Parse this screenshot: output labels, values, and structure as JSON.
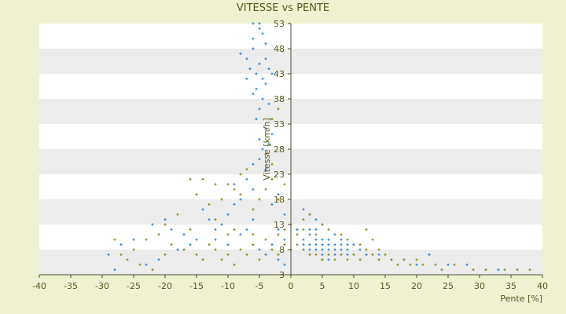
{
  "chart_data": {
    "type": "scatter",
    "title": "VITESSE vs PENTE",
    "xlabel": "Pente [%]",
    "ylabel": "Vitesse [km/h]",
    "xlim": [
      -40,
      40
    ],
    "ylim": [
      3,
      53
    ],
    "xticks": [
      -40,
      -35,
      -30,
      -25,
      -20,
      -15,
      -10,
      -5,
      0,
      5,
      10,
      15,
      20,
      25,
      30,
      35,
      40
    ],
    "yticks": [
      3,
      8,
      13,
      18,
      23,
      28,
      33,
      38,
      43,
      48,
      53
    ],
    "grid": "horizontal alternating bands",
    "legend": "none",
    "colors": {
      "background": "#eef2d0",
      "plot_band_light": "#ffffff",
      "plot_band_dark": "#ececec",
      "axis": "#4a4a30",
      "series_blue": "#2f86d6",
      "series_olive": "#8c8c1e"
    },
    "series": [
      {
        "color": "#2f86d6",
        "marker": "plus",
        "points": [
          [
            -8,
            47
          ],
          [
            -7,
            46
          ],
          [
            -6.5,
            44
          ],
          [
            -6,
            48
          ],
          [
            -5.5,
            43
          ],
          [
            -5,
            45
          ],
          [
            -4.5,
            42
          ],
          [
            -4,
            46
          ],
          [
            -3.5,
            44
          ],
          [
            -5,
            52
          ],
          [
            -6,
            50
          ],
          [
            -4,
            49
          ],
          [
            -7,
            42
          ],
          [
            -5.5,
            40
          ],
          [
            -4.5,
            38
          ],
          [
            -5,
            36
          ],
          [
            -3.5,
            37
          ],
          [
            -6,
            39
          ],
          [
            -4,
            41
          ],
          [
            -3,
            43
          ],
          [
            -5,
            53
          ],
          [
            -6,
            53
          ],
          [
            -4.5,
            51
          ],
          [
            -5.5,
            34
          ],
          [
            -4,
            32
          ],
          [
            -5,
            30
          ],
          [
            -4.5,
            28
          ],
          [
            -5,
            26
          ],
          [
            -4,
            24
          ],
          [
            -6,
            25
          ],
          [
            -3.5,
            29
          ],
          [
            -3,
            31
          ],
          [
            -7,
            22
          ],
          [
            -6,
            20
          ],
          [
            -8,
            18
          ],
          [
            -9,
            17
          ],
          [
            -10,
            15
          ],
          [
            -11,
            13
          ],
          [
            -12,
            12
          ],
          [
            -13,
            14
          ],
          [
            -14,
            16
          ],
          [
            -15,
            10
          ],
          [
            -16,
            9
          ],
          [
            -17,
            11
          ],
          [
            -18,
            8
          ],
          [
            -19,
            12
          ],
          [
            -20,
            14
          ],
          [
            -22,
            13
          ],
          [
            -25,
            10
          ],
          [
            -27,
            9
          ],
          [
            -29,
            7
          ],
          [
            -28,
            4
          ],
          [
            -21,
            6
          ],
          [
            -23,
            5
          ],
          [
            -12,
            10
          ],
          [
            -10,
            9
          ],
          [
            -8,
            11
          ],
          [
            -7,
            12
          ],
          [
            -6,
            14
          ],
          [
            -9,
            21
          ],
          [
            -3,
            17
          ],
          [
            -2,
            19
          ],
          [
            -1,
            15
          ],
          [
            -2,
            12
          ],
          [
            -1,
            10
          ],
          [
            -3,
            9
          ],
          [
            -4,
            7
          ],
          [
            -2,
            6
          ],
          [
            -1,
            5
          ],
          [
            -5,
            8
          ],
          [
            2,
            10
          ],
          [
            3,
            9
          ],
          [
            4,
            8
          ],
          [
            5,
            8
          ],
          [
            6,
            7
          ],
          [
            7,
            9
          ],
          [
            8,
            8
          ],
          [
            3,
            11
          ],
          [
            4,
            12
          ],
          [
            5,
            10
          ],
          [
            6,
            9
          ],
          [
            7,
            8
          ],
          [
            8,
            7
          ],
          [
            9,
            8
          ],
          [
            10,
            7
          ],
          [
            4,
            9
          ],
          [
            5,
            7
          ],
          [
            6,
            8
          ],
          [
            3,
            8
          ],
          [
            2,
            8
          ],
          [
            5,
            9
          ],
          [
            6,
            10
          ],
          [
            4,
            10
          ],
          [
            7,
            7
          ],
          [
            8,
            9
          ],
          [
            9,
            7
          ],
          [
            3,
            7
          ],
          [
            2,
            9
          ],
          [
            5,
            6
          ],
          [
            6,
            6
          ],
          [
            4,
            14
          ],
          [
            3,
            15
          ],
          [
            2,
            16
          ],
          [
            5,
            13
          ],
          [
            1,
            12
          ],
          [
            8,
            10
          ],
          [
            9,
            9
          ],
          [
            10,
            9
          ],
          [
            11,
            8
          ],
          [
            12,
            7
          ],
          [
            14,
            7
          ],
          [
            16,
            6
          ],
          [
            18,
            6
          ],
          [
            22,
            7
          ],
          [
            25,
            5
          ],
          [
            28,
            5
          ],
          [
            33,
            4
          ],
          [
            20,
            5
          ],
          [
            3,
            12
          ],
          [
            7,
            11
          ]
        ]
      },
      {
        "color": "#8c8c1e",
        "marker": "plus",
        "points": [
          [
            -16,
            22
          ],
          [
            -14,
            22
          ],
          [
            -12,
            21
          ],
          [
            -10,
            21
          ],
          [
            -9,
            20
          ],
          [
            -8,
            19
          ],
          [
            -11,
            18
          ],
          [
            -13,
            17
          ],
          [
            -15,
            19
          ],
          [
            -18,
            15
          ],
          [
            -20,
            13
          ],
          [
            -21,
            11
          ],
          [
            -23,
            10
          ],
          [
            -25,
            8
          ],
          [
            -27,
            7
          ],
          [
            -28,
            10
          ],
          [
            -26,
            6
          ],
          [
            -24,
            5
          ],
          [
            -22,
            4
          ],
          [
            -19,
            9
          ],
          [
            -17,
            8
          ],
          [
            -15,
            7
          ],
          [
            -14,
            6
          ],
          [
            -13,
            9
          ],
          [
            -12,
            8
          ],
          [
            -11,
            6
          ],
          [
            -10,
            7
          ],
          [
            -9,
            5
          ],
          [
            -8,
            8
          ],
          [
            -7,
            7
          ],
          [
            -6,
            9
          ],
          [
            -5,
            6
          ],
          [
            -4,
            10
          ],
          [
            -3,
            8
          ],
          [
            -2,
            7
          ],
          [
            -1,
            9
          ],
          [
            -6,
            16
          ],
          [
            -5,
            18
          ],
          [
            -4,
            20
          ],
          [
            -3,
            22
          ],
          [
            -2,
            18
          ],
          [
            -3,
            25
          ],
          [
            -4,
            27
          ],
          [
            -3,
            34
          ],
          [
            -2,
            36
          ],
          [
            -1,
            21
          ],
          [
            -7,
            24
          ],
          [
            -8,
            23
          ],
          [
            -9,
            12
          ],
          [
            -10,
            11
          ],
          [
            0,
            8
          ],
          [
            1,
            9
          ],
          [
            2,
            8
          ],
          [
            3,
            7
          ],
          [
            4,
            7
          ],
          [
            5,
            6
          ],
          [
            6,
            7
          ],
          [
            7,
            6
          ],
          [
            8,
            7
          ],
          [
            9,
            6
          ],
          [
            10,
            7
          ],
          [
            11,
            6
          ],
          [
            12,
            8
          ],
          [
            13,
            7
          ],
          [
            14,
            6
          ],
          [
            15,
            7
          ],
          [
            16,
            6
          ],
          [
            17,
            5
          ],
          [
            18,
            6
          ],
          [
            19,
            5
          ],
          [
            20,
            6
          ],
          [
            21,
            5
          ],
          [
            23,
            5
          ],
          [
            24,
            4
          ],
          [
            26,
            5
          ],
          [
            29,
            4
          ],
          [
            31,
            4
          ],
          [
            34,
            4
          ],
          [
            36,
            4
          ],
          [
            38,
            4
          ],
          [
            2,
            14
          ],
          [
            3,
            15
          ],
          [
            5,
            13
          ],
          [
            6,
            12
          ],
          [
            8,
            11
          ],
          [
            9,
            10
          ],
          [
            11,
            9
          ],
          [
            12,
            12
          ],
          [
            13,
            10
          ],
          [
            14,
            8
          ],
          [
            1,
            11
          ],
          [
            2,
            12
          ],
          [
            4,
            11
          ],
          [
            0,
            13
          ],
          [
            -1,
            12
          ],
          [
            -2,
            11
          ],
          [
            -6,
            11
          ],
          [
            -16,
            12
          ],
          [
            -12,
            14
          ],
          [
            -20,
            7
          ]
        ]
      }
    ]
  }
}
